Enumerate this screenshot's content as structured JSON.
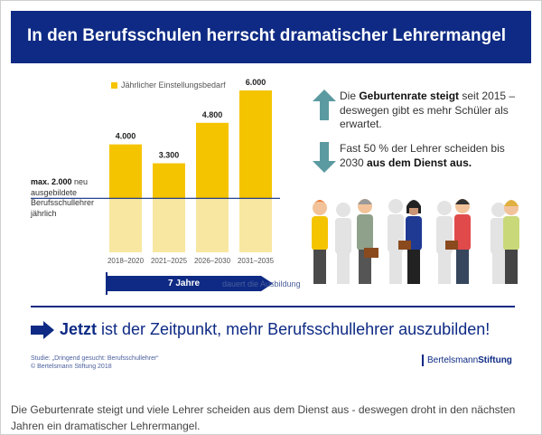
{
  "header": {
    "title": "In den Berufsschulen herrscht dramatischer Lehrermangel"
  },
  "chart_data": {
    "type": "bar",
    "title": "In den Berufsschulen herrscht dramatischer Lehrermangel",
    "legend": [
      "Jährlicher Einstellungsbedarf"
    ],
    "categories": [
      "2018–2020",
      "2021–2025",
      "2026–2030",
      "2031–2035"
    ],
    "values": [
      4000,
      3300,
      4800,
      6000
    ],
    "value_labels": [
      "4.000",
      "3.300",
      "4.800",
      "6.000"
    ],
    "reference_line": {
      "value": 2000,
      "label_bold": "max. 2.000",
      "label_rest": " neu ausgebildete Berufsschullehrer jährlich"
    },
    "ylim": [
      0,
      6000
    ],
    "xlabel": "",
    "ylabel": ""
  },
  "timeline": {
    "value": "7 Jahre",
    "text": "dauert die Ausbildung"
  },
  "facts": [
    {
      "direction": "up",
      "prefix": "Die ",
      "bold": "Geburtenrate steigt",
      "suffix": " seit 2015 – deswegen gibt es mehr Schüler als erwartet."
    },
    {
      "direction": "down",
      "prefix": "Fast 50 % der Lehrer scheiden bis 2030 ",
      "bold": "aus dem Dienst aus.",
      "suffix": ""
    }
  ],
  "cta": {
    "bold": "Jetzt",
    "rest": " ist der Zeitpunkt, mehr Berufsschullehrer auszubilden!"
  },
  "source": {
    "line1": "Studie: „Dringend gesucht: Berufsschullehrer“",
    "line2": "© Bertelsmann Stiftung 2018"
  },
  "logo": {
    "part1": "Bertelsmann",
    "part2": "Stiftung"
  },
  "caption": "Die Geburtenrate steigt und viele Lehrer scheiden aus dem Dienst aus - deswegen droht in den nächsten Jahren ein dramatischer Lehrermangel.",
  "colors": {
    "navy": "#0e2a84",
    "bar": "#f5c400",
    "bar_faded": "#f8e7a0",
    "teal": "#5b9aa0"
  }
}
